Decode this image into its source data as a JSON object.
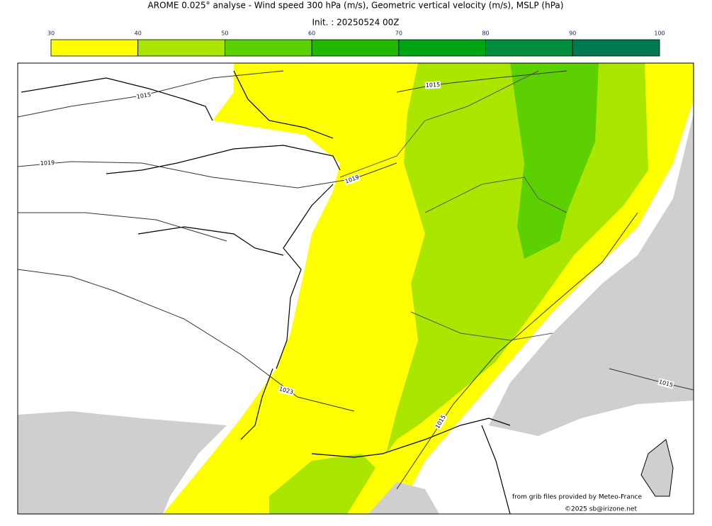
{
  "title": "AROME 0.025° analyse - Wind speed 300 hPa (m/s), Geometric vertical velocity (m/s), MSLP (hPa)",
  "subtitle": "Init. : 20250524 00Z",
  "colorbar": {
    "ticks": [
      30,
      40,
      50,
      60,
      70,
      80,
      90,
      100
    ],
    "colors": [
      "#ffff00",
      "#aae600",
      "#5cd000",
      "#22b800",
      "#00a514",
      "#008e3c",
      "#007a52"
    ]
  },
  "isobar_labels": [
    "1015",
    "1019",
    "1015",
    "1019",
    "1023",
    "1015",
    "1015"
  ],
  "credits": [
    "from grib files provided by Meteo-France",
    "©2025 sb@irizone.net"
  ]
}
